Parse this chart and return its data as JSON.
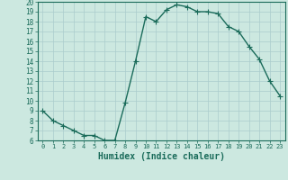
{
  "title": "",
  "xlabel": "Humidex (Indice chaleur)",
  "ylabel": "",
  "x_values": [
    0,
    1,
    2,
    3,
    4,
    5,
    6,
    7,
    8,
    9,
    10,
    11,
    12,
    13,
    14,
    15,
    16,
    17,
    18,
    19,
    20,
    21,
    22,
    23
  ],
  "y_values": [
    9,
    8,
    7.5,
    7,
    6.5,
    6.5,
    6,
    6,
    9.8,
    14,
    18.5,
    18,
    19.2,
    19.7,
    19.5,
    19,
    19,
    18.8,
    17.5,
    17,
    15.5,
    14.2,
    12,
    10.5
  ],
  "line_color": "#1a6b5a",
  "bg_color": "#cce8e0",
  "grid_color": "#aacccc",
  "tick_color": "#1a6b5a",
  "label_color": "#1a6b5a",
  "ylim": [
    6,
    20
  ],
  "yticks": [
    6,
    7,
    8,
    9,
    10,
    11,
    12,
    13,
    14,
    15,
    16,
    17,
    18,
    19,
    20
  ],
  "xlim": [
    -0.5,
    23.5
  ],
  "xticks": [
    0,
    1,
    2,
    3,
    4,
    5,
    6,
    7,
    8,
    9,
    10,
    11,
    12,
    13,
    14,
    15,
    16,
    17,
    18,
    19,
    20,
    21,
    22,
    23
  ],
  "marker": "+",
  "markersize": 4,
  "linewidth": 1.0
}
